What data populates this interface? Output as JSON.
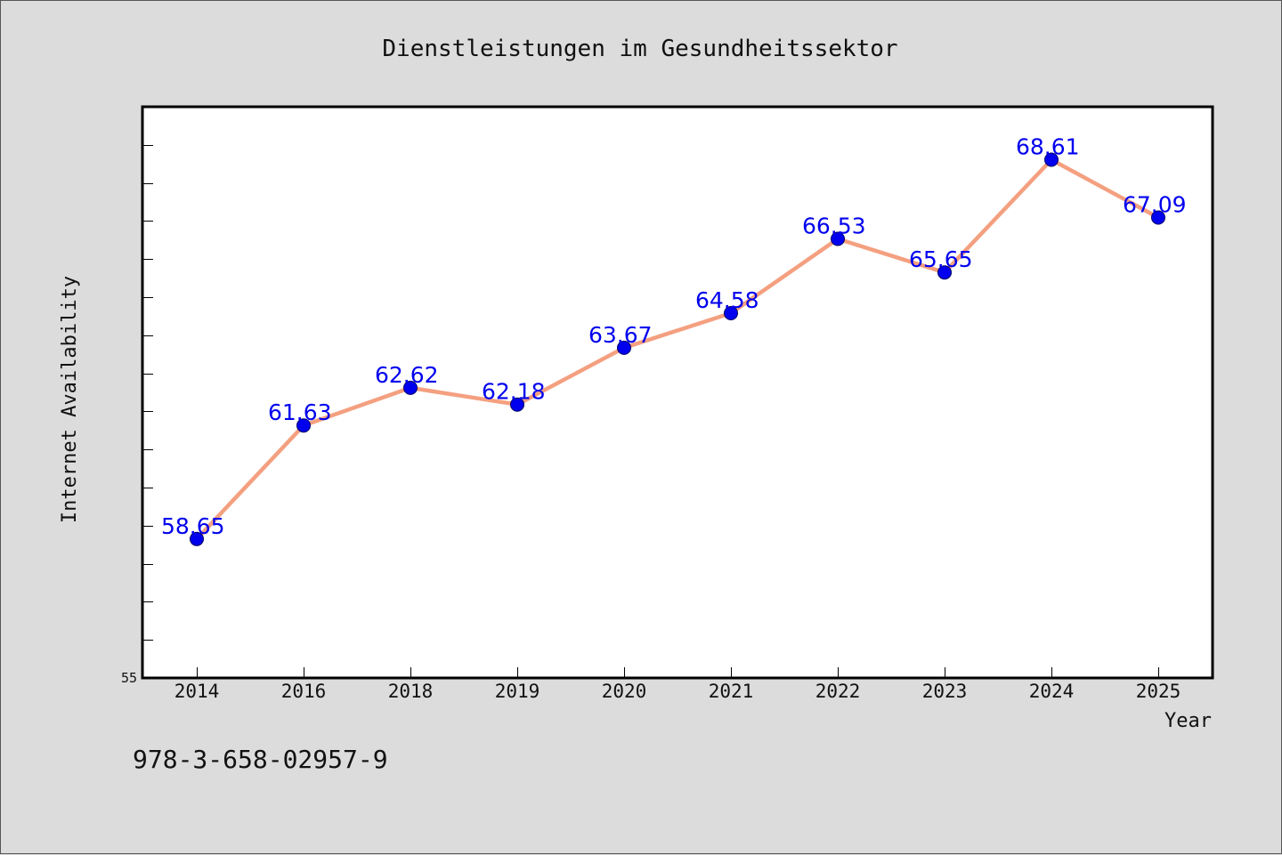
{
  "chart_data": {
    "type": "line",
    "title": "Dienstleistungen im Gesundheitssektor",
    "xlabel": "Year",
    "ylabel": "Internet Availability",
    "categories": [
      "2014",
      "2016",
      "2018",
      "2019",
      "2020",
      "2021",
      "2022",
      "2023",
      "2024",
      "2025"
    ],
    "series": [
      {
        "values": [
          58.65,
          61.63,
          62.62,
          62.18,
          63.67,
          64.58,
          66.53,
          65.65,
          68.61,
          67.09
        ],
        "labels": [
          "58.65",
          "61.63",
          "62.62",
          "62.18",
          "63.67",
          "64.58",
          "66.53",
          "65.65",
          "68.61",
          "67.09"
        ],
        "line_color": "#f4a080",
        "marker_color": "#0000ee",
        "label_color": "#0000ee"
      }
    ],
    "ylim": [
      55,
      70
    ],
    "y_min_label": "55",
    "y_minor_step": 1,
    "grid": false,
    "legend": "none"
  },
  "footer": {
    "isbn": "978-3-658-02957-9"
  },
  "colors": {
    "background": "#dcdcdc",
    "plot_background": "#ffffff",
    "axis": "#000000"
  }
}
